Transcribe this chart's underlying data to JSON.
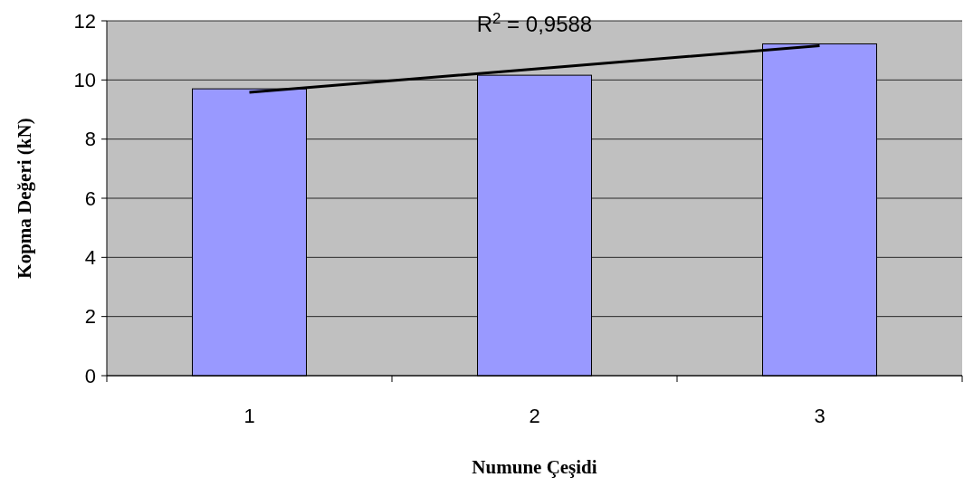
{
  "chart_data": {
    "type": "bar",
    "xlabel": "Numune Çeşidi",
    "ylabel": "Kopma Değeri (kN)",
    "categories": [
      "1",
      "2",
      "3"
    ],
    "series": [
      {
        "color": "#9999ff",
        "values": [
          9.7,
          10.16,
          11.22
        ]
      },
      {
        "type": "line",
        "color": "#000000",
        "values": [
          9.58,
          10.37,
          11.16
        ]
      }
    ],
    "ylim": [
      0,
      12
    ],
    "yticks": [
      0,
      2,
      4,
      6,
      8,
      10,
      12
    ],
    "grid": "y",
    "marker": "none",
    "annotations": [
      "R$^{2}$ = 0,9588"
    ]
  }
}
